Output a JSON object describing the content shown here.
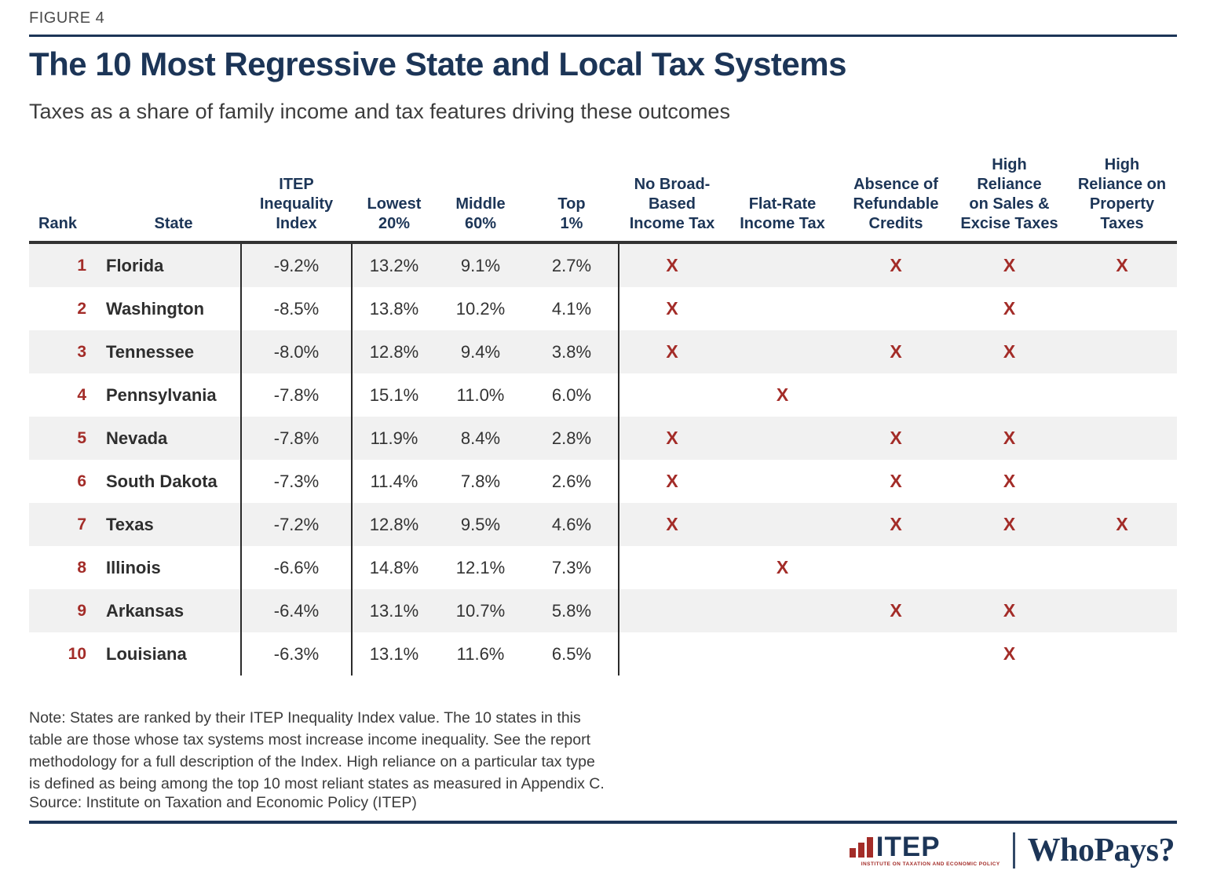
{
  "figure_label": "FIGURE 4",
  "title": "The 10 Most Regressive State and Local Tax Systems",
  "subtitle": "Taxes as a share of family income and tax features driving these outcomes",
  "table": {
    "columns": {
      "rank": "Rank",
      "state": "State",
      "index": "ITEP\nInequality\nIndex",
      "lowest20": "Lowest\n20%",
      "middle60": "Middle\n60%",
      "top1": "Top\n1%",
      "no_broad_based": "No Broad-\nBased\nIncome Tax",
      "flat_rate": "Flat-Rate\nIncome Tax",
      "refundable": "Absence of\nRefundable\nCredits",
      "sales_excise": "High\nReliance\non Sales &\nExcise Taxes",
      "property": "High\nReliance on\nProperty\nTaxes"
    },
    "rows": [
      {
        "rank": "1",
        "state": "Florida",
        "index": "-9.2%",
        "lowest20": "13.2%",
        "middle60": "9.1%",
        "top1": "2.7%",
        "features": [
          "X",
          "",
          "X",
          "X",
          "X"
        ]
      },
      {
        "rank": "2",
        "state": "Washington",
        "index": "-8.5%",
        "lowest20": "13.8%",
        "middle60": "10.2%",
        "top1": "4.1%",
        "features": [
          "X",
          "",
          "",
          "X",
          ""
        ]
      },
      {
        "rank": "3",
        "state": "Tennessee",
        "index": "-8.0%",
        "lowest20": "12.8%",
        "middle60": "9.4%",
        "top1": "3.8%",
        "features": [
          "X",
          "",
          "X",
          "X",
          ""
        ]
      },
      {
        "rank": "4",
        "state": "Pennsylvania",
        "index": "-7.8%",
        "lowest20": "15.1%",
        "middle60": "11.0%",
        "top1": "6.0%",
        "features": [
          "",
          "X",
          "",
          "",
          ""
        ]
      },
      {
        "rank": "5",
        "state": "Nevada",
        "index": "-7.8%",
        "lowest20": "11.9%",
        "middle60": "8.4%",
        "top1": "2.8%",
        "features": [
          "X",
          "",
          "X",
          "X",
          ""
        ]
      },
      {
        "rank": "6",
        "state": "South Dakota",
        "index": "-7.3%",
        "lowest20": "11.4%",
        "middle60": "7.8%",
        "top1": "2.6%",
        "features": [
          "X",
          "",
          "X",
          "X",
          ""
        ]
      },
      {
        "rank": "7",
        "state": "Texas",
        "index": "-7.2%",
        "lowest20": "12.8%",
        "middle60": "9.5%",
        "top1": "4.6%",
        "features": [
          "X",
          "",
          "X",
          "X",
          "X"
        ]
      },
      {
        "rank": "8",
        "state": "Illinois",
        "index": "-6.6%",
        "lowest20": "14.8%",
        "middle60": "12.1%",
        "top1": "7.3%",
        "features": [
          "",
          "X",
          "",
          "",
          ""
        ]
      },
      {
        "rank": "9",
        "state": "Arkansas",
        "index": "-6.4%",
        "lowest20": "13.1%",
        "middle60": "10.7%",
        "top1": "5.8%",
        "features": [
          "",
          "",
          "X",
          "X",
          ""
        ]
      },
      {
        "rank": "10",
        "state": "Louisiana",
        "index": "-6.3%",
        "lowest20": "13.1%",
        "middle60": "11.6%",
        "top1": "6.5%",
        "features": [
          "",
          "",
          "",
          "X",
          ""
        ]
      }
    ]
  },
  "chart_data": {
    "type": "table",
    "title": "The 10 Most Regressive State and Local Tax Systems",
    "subtitle": "Taxes as a share of family income and tax features driving these outcomes",
    "columns": [
      "Rank",
      "State",
      "ITEP Inequality Index",
      "Lowest 20%",
      "Middle 60%",
      "Top 1%",
      "No Broad-Based Income Tax",
      "Flat-Rate Income Tax",
      "Absence of Refundable Credits",
      "High Reliance on Sales & Excise Taxes",
      "High Reliance on Property Taxes"
    ],
    "rows": [
      [
        1,
        "Florida",
        -9.2,
        13.2,
        9.1,
        2.7,
        true,
        false,
        true,
        true,
        true
      ],
      [
        2,
        "Washington",
        -8.5,
        13.8,
        10.2,
        4.1,
        true,
        false,
        false,
        true,
        false
      ],
      [
        3,
        "Tennessee",
        -8.0,
        12.8,
        9.4,
        3.8,
        true,
        false,
        true,
        true,
        false
      ],
      [
        4,
        "Pennsylvania",
        -7.8,
        15.1,
        11.0,
        6.0,
        false,
        true,
        false,
        false,
        false
      ],
      [
        5,
        "Nevada",
        -7.8,
        11.9,
        8.4,
        2.8,
        true,
        false,
        true,
        true,
        false
      ],
      [
        6,
        "South Dakota",
        -7.3,
        11.4,
        7.8,
        2.6,
        true,
        false,
        true,
        true,
        false
      ],
      [
        7,
        "Texas",
        -7.2,
        12.8,
        9.5,
        4.6,
        true,
        false,
        true,
        true,
        true
      ],
      [
        8,
        "Illinois",
        -6.6,
        14.8,
        12.1,
        7.3,
        false,
        true,
        false,
        false,
        false
      ],
      [
        9,
        "Arkansas",
        -6.4,
        13.1,
        10.7,
        5.8,
        false,
        false,
        true,
        true,
        false
      ],
      [
        10,
        "Louisiana",
        -6.3,
        13.1,
        11.6,
        6.5,
        false,
        false,
        false,
        true,
        false
      ]
    ],
    "units": "percent of family income",
    "mark_glyph": "X"
  },
  "note": "Note: States are ranked by their ITEP Inequality Index value. The 10 states in this\ntable are those whose tax systems most increase income inequality. See the report\nmethodology for a full description of the Index. High reliance on a particular tax type\nis defined as being among the top 10 most reliant states as measured in Appendix C.",
  "source": "Source: Institute on Taxation and Economic Policy (ITEP)",
  "footer": {
    "itep_logo_text": "ITEP",
    "itep_logo_caption": "INSTITUTE ON TAXATION AND ECONOMIC POLICY",
    "brand": "WhoPays?"
  },
  "colors": {
    "navy": "#1C3557",
    "red": "#A32C28",
    "row_stripe": "#F1F1F1",
    "text_dark": "#333333"
  }
}
